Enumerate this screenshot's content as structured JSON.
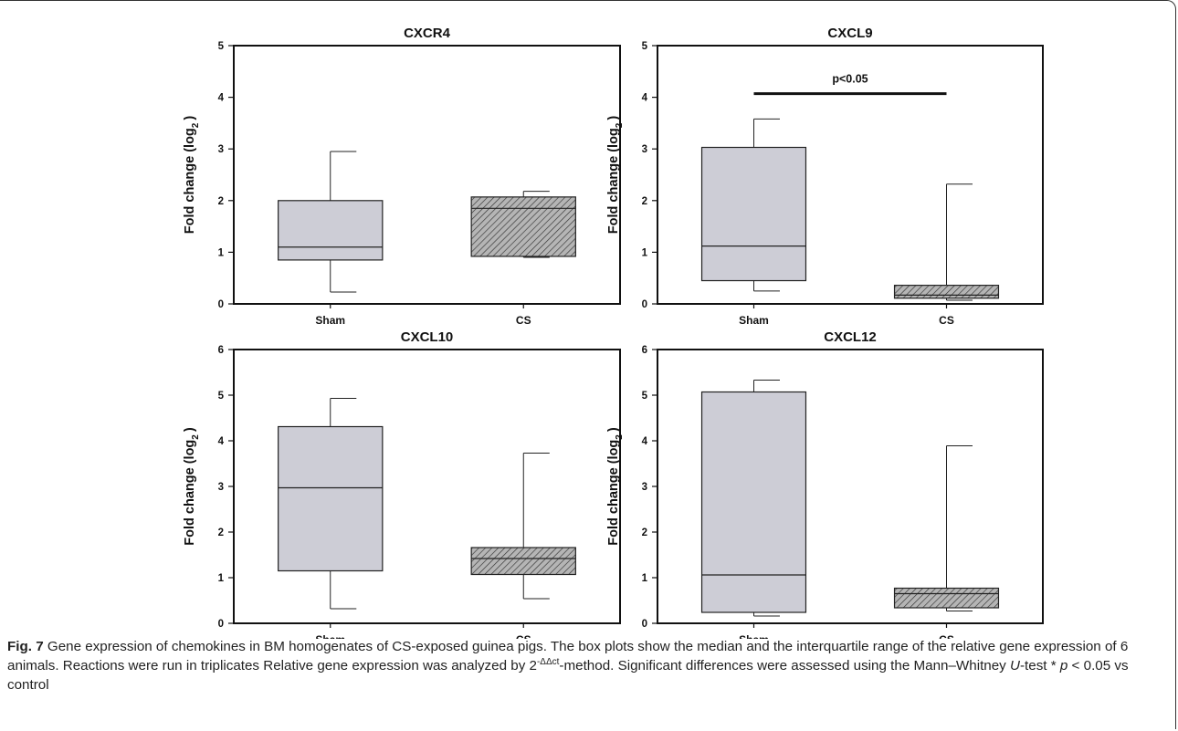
{
  "chart_data": [
    {
      "type": "box",
      "title": "CXCR4",
      "ylabel_main": "Fold change (log",
      "ylabel_sub": "2",
      "ylabel_close": ")",
      "ylim": [
        0,
        5
      ],
      "yticks": [
        "0",
        "1",
        "2",
        "3",
        "4",
        "5"
      ],
      "categories": [
        "Sham",
        "CS"
      ],
      "boxes": [
        {
          "category": "Sham",
          "min": 0.23,
          "q1": 0.85,
          "median": 1.1,
          "q3": 2.0,
          "max": 2.95,
          "fill": "#cdcdd6",
          "hatch": false
        },
        {
          "category": "CS",
          "min": 0.9,
          "q1": 0.92,
          "median": 1.85,
          "q3": 2.07,
          "max": 2.18,
          "fill": "#b0b0b0",
          "hatch": true
        }
      ],
      "annotation": null
    },
    {
      "type": "box",
      "title": "CXCL9",
      "ylabel_main": "Fold change (log",
      "ylabel_sub": "2",
      "ylabel_close": ")",
      "ylim": [
        0,
        5
      ],
      "yticks": [
        "0",
        "1",
        "2",
        "3",
        "4",
        "5"
      ],
      "categories": [
        "Sham",
        "CS"
      ],
      "boxes": [
        {
          "category": "Sham",
          "min": 0.25,
          "q1": 0.45,
          "median": 1.12,
          "q3": 3.03,
          "max": 3.58,
          "fill": "#cdcdd6",
          "hatch": false
        },
        {
          "category": "CS",
          "min": 0.07,
          "q1": 0.11,
          "median": 0.17,
          "q3": 0.36,
          "max": 2.32,
          "fill": "#b0b0b0",
          "hatch": true
        }
      ],
      "annotation": {
        "text": "p<0.05",
        "y": 4.07
      }
    },
    {
      "type": "box",
      "title": "CXCL10",
      "ylabel_main": "Fold change (log",
      "ylabel_sub": "2",
      "ylabel_close": ")",
      "ylim": [
        0,
        6
      ],
      "yticks": [
        "0",
        "1",
        "2",
        "3",
        "4",
        "5",
        "6"
      ],
      "categories": [
        "Sham",
        "CS"
      ],
      "boxes": [
        {
          "category": "Sham",
          "min": 0.32,
          "q1": 1.15,
          "median": 2.97,
          "q3": 4.31,
          "max": 4.93,
          "fill": "#cdcdd6",
          "hatch": false
        },
        {
          "category": "CS",
          "min": 0.54,
          "q1": 1.07,
          "median": 1.42,
          "q3": 1.66,
          "max": 3.73,
          "fill": "#b0b0b0",
          "hatch": true
        }
      ],
      "annotation": null
    },
    {
      "type": "box",
      "title": "CXCL12",
      "ylabel_main": "Fold change (log",
      "ylabel_sub": "2",
      "ylabel_close": ")",
      "ylim": [
        0,
        6
      ],
      "yticks": [
        "0",
        "1",
        "2",
        "3",
        "4",
        "5",
        "6"
      ],
      "categories": [
        "Sham",
        "CS"
      ],
      "boxes": [
        {
          "category": "Sham",
          "min": 0.16,
          "q1": 0.24,
          "median": 1.06,
          "q3": 5.07,
          "max": 5.33,
          "fill": "#cdcdd6",
          "hatch": false
        },
        {
          "category": "CS",
          "min": 0.27,
          "q1": 0.34,
          "median": 0.65,
          "q3": 0.77,
          "max": 3.89,
          "fill": "#b0b0b0",
          "hatch": true
        }
      ],
      "annotation": null
    }
  ],
  "caption": {
    "label": "Fig. 7",
    "p1": " Gene expression of chemokines in BM homogenates of CS-exposed guinea pigs. The box plots show the median and the interquartile range of the relative gene expression of 6 animals. Reactions were run in triplicates Relative gene expression was analyzed by 2",
    "sup": "-ΔΔct",
    "p2": "-method. Significant differences were assessed using the Mann–Whitney ",
    "italic_u": "U",
    "p3": "-test * ",
    "italic_p": "p",
    "p4": " < 0.05 vs control"
  }
}
